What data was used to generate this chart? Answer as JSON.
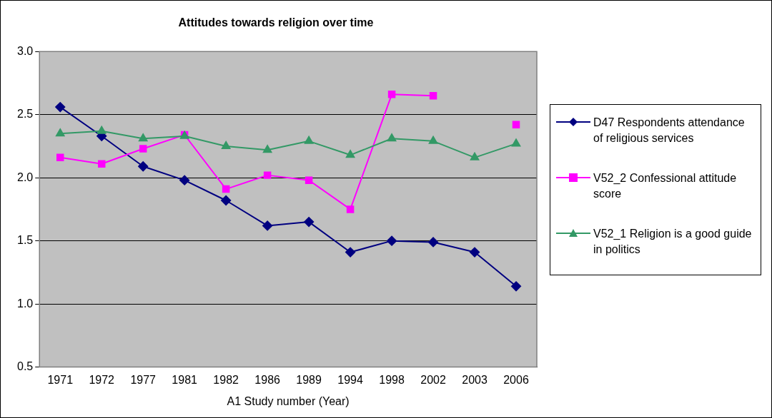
{
  "chart_data": {
    "type": "line",
    "title": "Attitudes towards religion over time",
    "xlabel": "A1 Study number (Year)",
    "categories": [
      "1971",
      "1972",
      "1977",
      "1981",
      "1982",
      "1986",
      "1989",
      "1994",
      "1998",
      "2002",
      "2003",
      "2006"
    ],
    "series": [
      {
        "name": "D47 Respondents attendance of religious services",
        "color": "#000080",
        "marker": "diamond",
        "values": [
          2.56,
          2.33,
          2.09,
          1.98,
          1.82,
          1.62,
          1.65,
          1.41,
          1.5,
          1.49,
          1.41,
          1.14
        ]
      },
      {
        "name": "V52_2 Confessional attitude score",
        "color": "#ff00ff",
        "marker": "square",
        "values": [
          2.16,
          2.11,
          2.23,
          2.34,
          1.91,
          2.02,
          1.98,
          1.75,
          2.66,
          2.65,
          null,
          2.42
        ]
      },
      {
        "name": "V52_1 Religion is a good guide in politics",
        "color": "#339966",
        "marker": "triangle",
        "values": [
          2.35,
          2.37,
          2.31,
          2.33,
          2.25,
          2.22,
          2.29,
          2.18,
          2.31,
          2.29,
          2.16,
          2.27
        ]
      }
    ],
    "ylim": [
      0.5,
      3.0
    ],
    "yticks": [
      {
        "value": 0.5,
        "label": "0.5"
      },
      {
        "value": 1.0,
        "label": "1.0"
      },
      {
        "value": 1.5,
        "label": "1.5"
      },
      {
        "value": 2.0,
        "label": "2.0"
      },
      {
        "value": 2.5,
        "label": "2.5"
      },
      {
        "value": 3.0,
        "label": "3.0"
      }
    ],
    "grid": "y",
    "legend": "right",
    "line_style": "solid"
  }
}
